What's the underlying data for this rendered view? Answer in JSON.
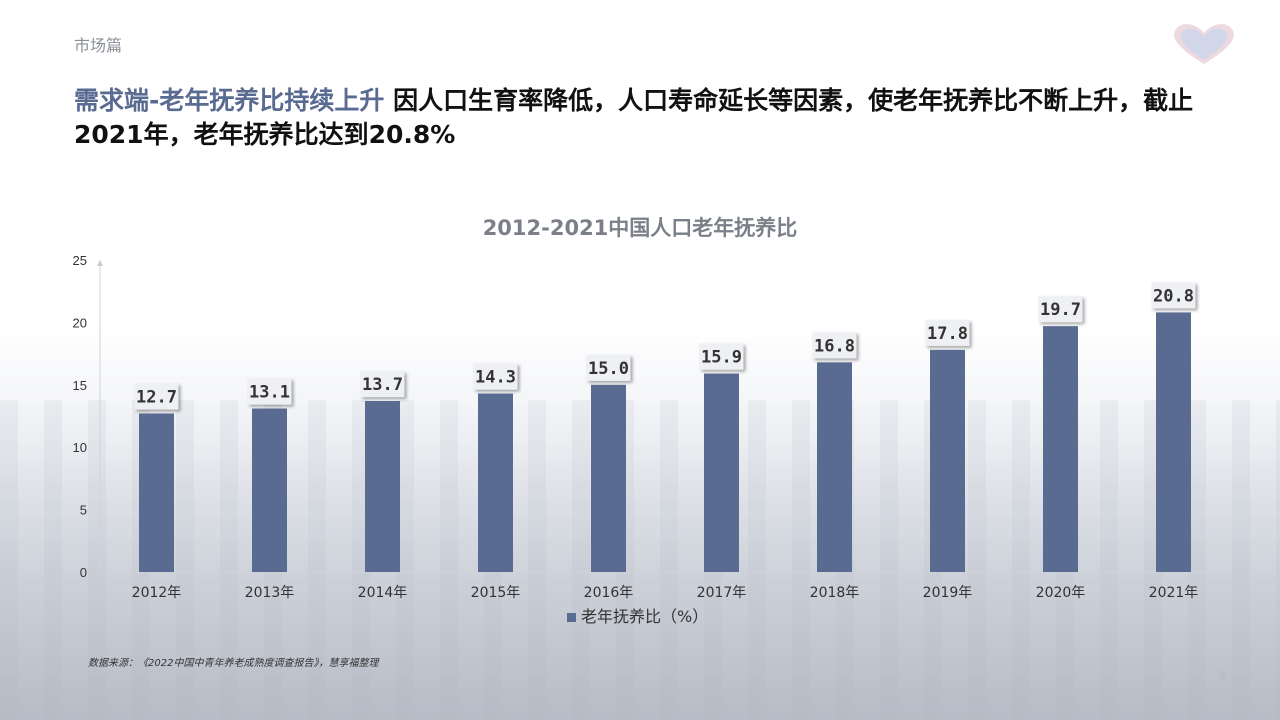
{
  "section_label": "市场篇",
  "headline": {
    "accent": "需求端-老年抚养比持续上升",
    "text": " 因人口生育率降低，人口寿命延长等因素，使老年抚养比不断上升，截止2021年，老年抚养比达到20.8%"
  },
  "source": "数据来源：《2022中国中青年养老成熟度调查报告》，慧享福整理",
  "page_number": "4",
  "colors": {
    "bar": "#5a6b92",
    "accent": "#5a6b92",
    "axis_text": "#333333"
  },
  "chart_data": {
    "type": "bar",
    "title": "2012-2021中国人口老年抚养比",
    "categories": [
      "2012年",
      "2013年",
      "2014年",
      "2015年",
      "2016年",
      "2017年",
      "2018年",
      "2019年",
      "2020年",
      "2021年"
    ],
    "series": [
      {
        "name": "老年抚养比（%）",
        "values": [
          12.7,
          13.1,
          13.7,
          14.3,
          15.0,
          15.9,
          16.8,
          17.8,
          19.7,
          20.8
        ]
      }
    ],
    "data_labels": [
      "12.7",
      "13.1",
      "13.7",
      "14.3",
      "15.0",
      "15.9",
      "16.8",
      "17.8",
      "19.7",
      "20.8"
    ],
    "ylim": [
      0,
      25
    ],
    "yticks": [
      "0",
      "5",
      "10",
      "15",
      "20",
      "25"
    ],
    "grid": false,
    "legend": "bottom"
  }
}
